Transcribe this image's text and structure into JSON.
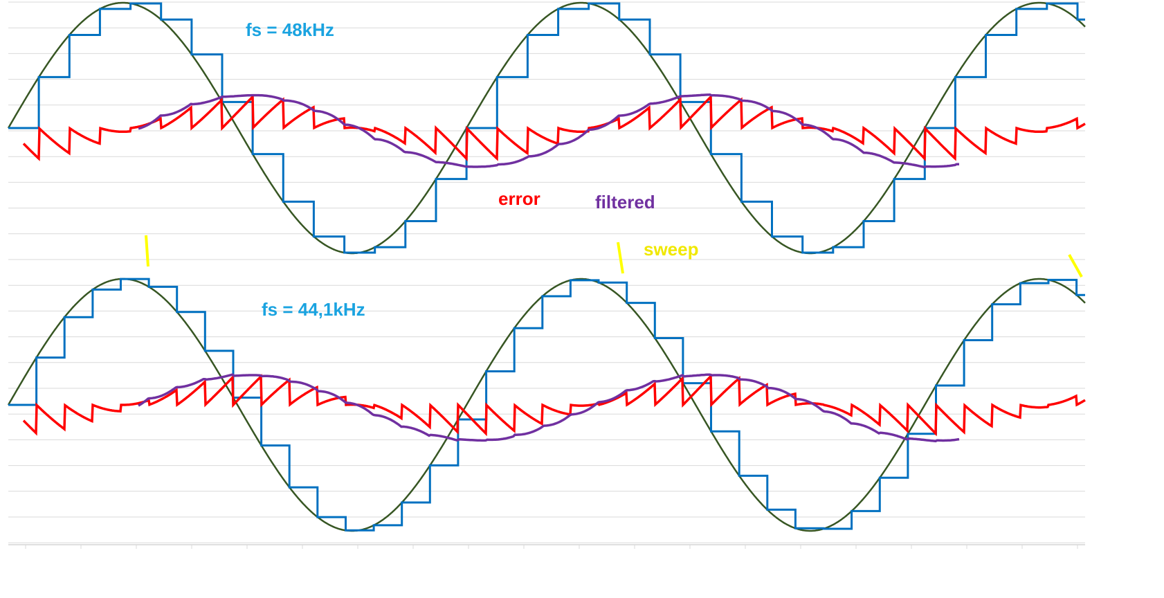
{
  "colors": {
    "grid": "#d9d9d9",
    "signal": "#375623",
    "sampled": "#0070c0",
    "error": "#ff0000",
    "filtered": "#7030a0",
    "sweep": "#ffff00",
    "fs_label": "#1aa3e0"
  },
  "labels": {
    "error": "error",
    "filtered": "filtered",
    "sweep": "sweep"
  },
  "chart_data": [
    {
      "type": "line",
      "title": "fs = 48kHz",
      "grid": true,
      "signal_cycles_shown": 2.35,
      "samples_per_cycle": 15,
      "series": [
        {
          "name": "",
          "kind": "sine"
        },
        {
          "name": "",
          "kind": "sample-and-hold"
        },
        {
          "name": "error",
          "kind": "sampled minus sine"
        },
        {
          "name": "filtered",
          "kind": "low-passed error"
        }
      ]
    },
    {
      "type": "line",
      "title": "fs = 44,1kHz",
      "grid": true,
      "signal_cycles_shown": 2.35,
      "samples_per_cycle": 16.3,
      "series": [
        {
          "name": "",
          "kind": "sine"
        },
        {
          "name": "",
          "kind": "sample-and-hold"
        },
        {
          "name": "error",
          "kind": "sampled minus sine"
        },
        {
          "name": "filtered",
          "kind": "low-passed error"
        }
      ]
    }
  ]
}
